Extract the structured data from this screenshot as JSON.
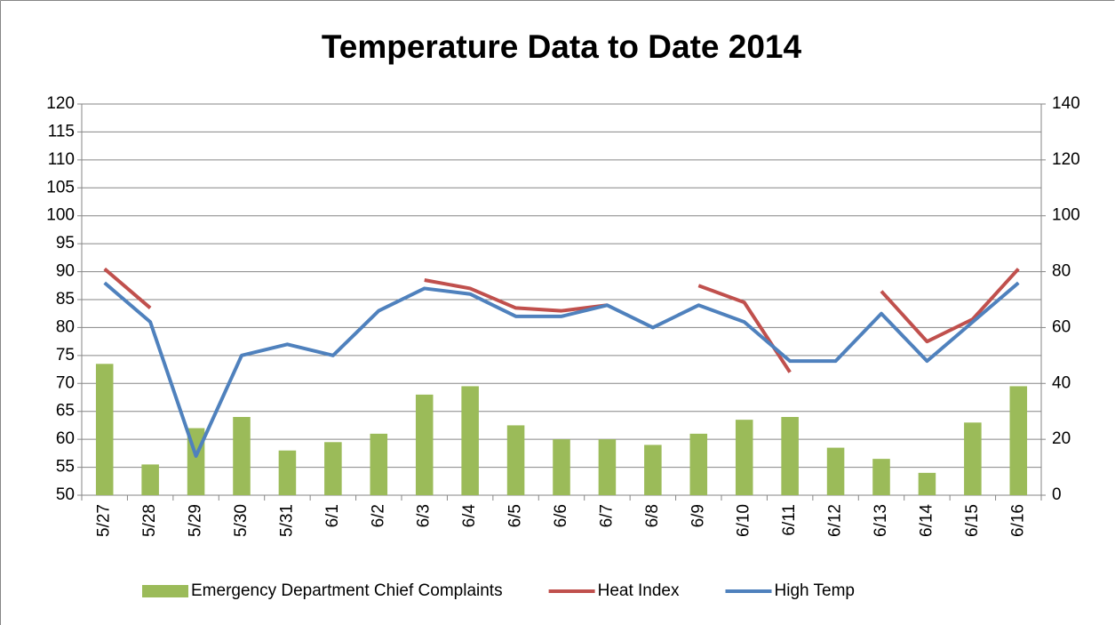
{
  "chart_data": {
    "type": "bar-line",
    "title": "Temperature Data to Date 2014",
    "categories": [
      "5/27",
      "5/28",
      "5/29",
      "5/30",
      "5/31",
      "6/1",
      "6/2",
      "6/3",
      "6/4",
      "6/5",
      "6/6",
      "6/7",
      "6/8",
      "6/9",
      "6/10",
      "6/11",
      "6/12",
      "6/13",
      "6/14",
      "6/15",
      "6/16"
    ],
    "series": [
      {
        "name": "Emergency Department Chief Complaints",
        "type": "bar",
        "axis": "y2",
        "color": "#9bbb59",
        "values": [
          47,
          11,
          24,
          28,
          16,
          19,
          22,
          36,
          39,
          25,
          20,
          20,
          18,
          22,
          27,
          28,
          17,
          13,
          8,
          26,
          39
        ]
      },
      {
        "name": "Heat Index",
        "type": "line",
        "color": "#c0504d",
        "values": [
          90.5,
          83.5,
          null,
          null,
          null,
          null,
          null,
          88.5,
          87,
          83.5,
          83,
          84,
          null,
          87.5,
          84.5,
          72,
          null,
          86.5,
          77.5,
          81.5,
          90.5
        ]
      },
      {
        "name": "High Temp",
        "type": "line",
        "color": "#4f81bd",
        "values": [
          88,
          81,
          57,
          75,
          77,
          75,
          83,
          87,
          86,
          82,
          82,
          84,
          80,
          84,
          81,
          74,
          74,
          82.5,
          74,
          81,
          88
        ]
      }
    ],
    "ylim": [
      50,
      120
    ],
    "yticks": [
      50,
      55,
      60,
      65,
      70,
      75,
      80,
      85,
      90,
      95,
      100,
      105,
      110,
      115,
      120
    ],
    "y2lim": [
      0,
      140
    ],
    "y2ticks": [
      0,
      20,
      40,
      60,
      80,
      100,
      120,
      140
    ],
    "grid": true,
    "legend": "bottom"
  }
}
